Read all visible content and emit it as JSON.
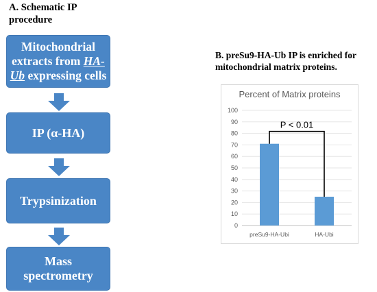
{
  "panel_a": {
    "title": "A. Schematic IP procedure",
    "steps": [
      {
        "pre": "Mitochondrial extracts from ",
        "emph": "HA-Ub",
        "post": " expressing cells"
      },
      {
        "pre": "IP (α-HA)",
        "emph": "",
        "post": ""
      },
      {
        "pre": "Trypsinization",
        "emph": "",
        "post": ""
      },
      {
        "pre": "Mass spectrometry",
        "emph": "",
        "post": ""
      }
    ]
  },
  "panel_b": {
    "title_line1": "B. preSu9-HA-Ub IP is enriched for",
    "title_line2": "mitochondrial matrix proteins."
  },
  "chart_data": {
    "type": "bar",
    "title": "Percent of Matrix proteins",
    "categories": [
      "preSu9-HA-Ubi",
      "HA-Ubi"
    ],
    "values": [
      71,
      25
    ],
    "ylim": [
      0,
      100
    ],
    "yticks": [
      0,
      10,
      20,
      30,
      40,
      50,
      60,
      70,
      80,
      90,
      100
    ],
    "grid": true,
    "annotation": "P < 0.01",
    "bar_color": "#5b9bd5"
  }
}
